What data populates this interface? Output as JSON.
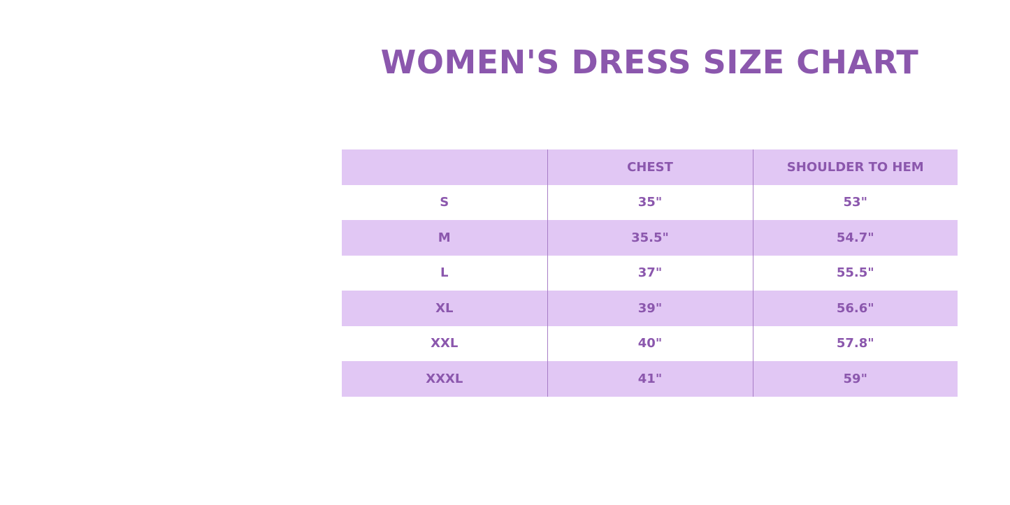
{
  "title": "WOMEN'S DRESS SIZE CHART",
  "colors": {
    "accent_text": "#8b57ad",
    "row_shade": "#e1c7f4"
  },
  "table": {
    "headers": [
      "",
      "CHEST",
      "SHOULDER TO HEM"
    ],
    "rows": [
      [
        "S",
        "35\"",
        "53\""
      ],
      [
        "M",
        "35.5\"",
        "54.7\""
      ],
      [
        "L",
        "37\"",
        "55.5\""
      ],
      [
        "XL",
        "39\"",
        "56.6\""
      ],
      [
        "XXL",
        "40\"",
        "57.8\""
      ],
      [
        "XXXL",
        "41\"",
        "59\""
      ]
    ]
  }
}
